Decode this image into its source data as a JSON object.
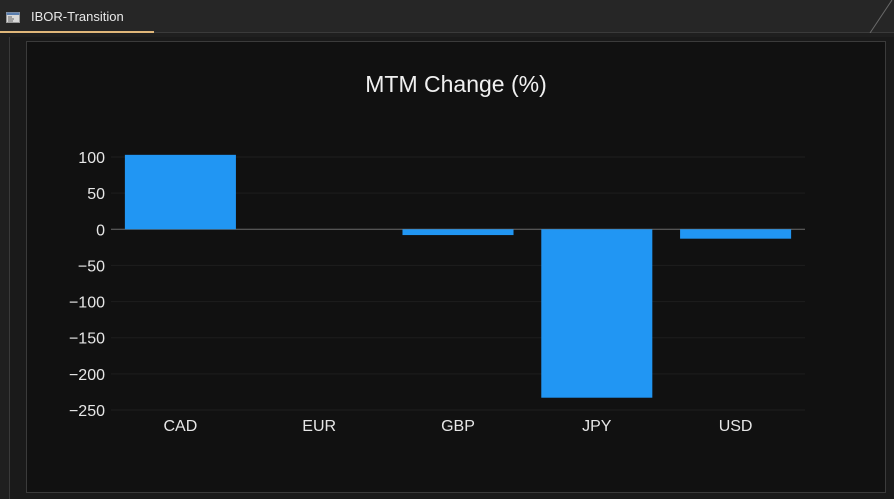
{
  "app": {
    "tab_label": "IBOR-Transition",
    "tab_icon": "window-icon"
  },
  "colors": {
    "bar": "#2196f3",
    "tab_accent": "#e0b77a",
    "background": "#111111"
  },
  "chart_data": {
    "type": "bar",
    "title": "MTM Change (%)",
    "categories": [
      "CAD",
      "EUR",
      "GBP",
      "JPY",
      "USD"
    ],
    "values": [
      103,
      0,
      -8,
      -233,
      -13
    ],
    "yticks": [
      100,
      50,
      0,
      -50,
      -100,
      -150,
      -200,
      -250
    ],
    "ytick_labels": [
      "100",
      "50",
      "0",
      "−50",
      "−100",
      "−150",
      "−200",
      "−250"
    ],
    "ylim": [
      -250,
      100
    ],
    "xlabel": "",
    "ylabel": "",
    "grid": true,
    "legend": "none"
  }
}
